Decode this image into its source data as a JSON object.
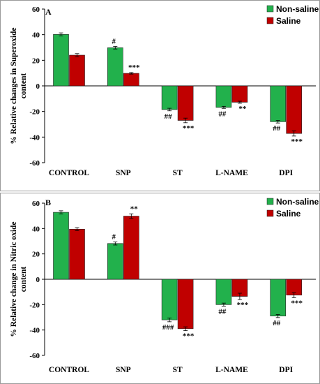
{
  "chart_data": [
    {
      "type": "bar",
      "panel_label": "A",
      "ylabel": "% Relative changes in Superoxide content",
      "ylabel_lines": [
        "% Relative changes in Superoxide",
        "content"
      ],
      "categories": [
        "CONTROL",
        "SNP",
        "ST",
        "L-NAME",
        "DPI"
      ],
      "ylim": [
        -60,
        60
      ],
      "yticks": [
        "60",
        "40",
        "20",
        "0",
        "-20",
        "-40",
        "-60"
      ],
      "yticks_num": [
        60,
        40,
        20,
        0,
        -20,
        -40,
        -60
      ],
      "legend_position": "top-right",
      "grid": false,
      "series": [
        {
          "name": "Non-saline",
          "color": "#22b14c",
          "values": [
            40.2,
            29.8,
            -18.5,
            -16.8,
            -28.0
          ],
          "errors": [
            1.2,
            1.0,
            1.0,
            0.8,
            1.0
          ],
          "annotations": [
            "",
            "#",
            "##",
            "##",
            "##"
          ]
        },
        {
          "name": "Saline",
          "color": "#c00000",
          "values": [
            24.0,
            9.8,
            -27.0,
            -12.8,
            -37.2
          ],
          "errors": [
            1.2,
            0.6,
            1.8,
            0.8,
            2.0
          ],
          "annotations": [
            "",
            "***",
            "***",
            "**",
            "***"
          ]
        }
      ]
    },
    {
      "type": "bar",
      "panel_label": "B",
      "ylabel": "% Relative change in Nitric oxide content",
      "ylabel_lines": [
        "% Relative change in Nitric oxide",
        "content"
      ],
      "categories": [
        "CONTROL",
        "SNP",
        "ST",
        "L-NAME",
        "DPI"
      ],
      "ylim": [
        -60,
        60
      ],
      "yticks": [
        "60",
        "40",
        "20",
        "0",
        "-20",
        "-40",
        "-60"
      ],
      "yticks_num": [
        60,
        40,
        20,
        0,
        -20,
        -40,
        -60
      ],
      "legend_position": "top-right",
      "grid": false,
      "series": [
        {
          "name": "Non-saline",
          "color": "#22b14c",
          "values": [
            52.8,
            28.2,
            -32.0,
            -20.0,
            -29.0
          ],
          "errors": [
            1.2,
            1.2,
            1.5,
            1.2,
            1.2
          ],
          "annotations": [
            "",
            "#",
            "###",
            "##",
            "##"
          ]
        },
        {
          "name": "Saline",
          "color": "#c00000",
          "values": [
            39.5,
            49.8,
            -39.0,
            -13.5,
            -12.5
          ],
          "errors": [
            1.2,
            1.8,
            1.5,
            2.5,
            2.0
          ],
          "annotations": [
            "",
            "**",
            "***",
            "***",
            "***"
          ]
        }
      ]
    }
  ]
}
